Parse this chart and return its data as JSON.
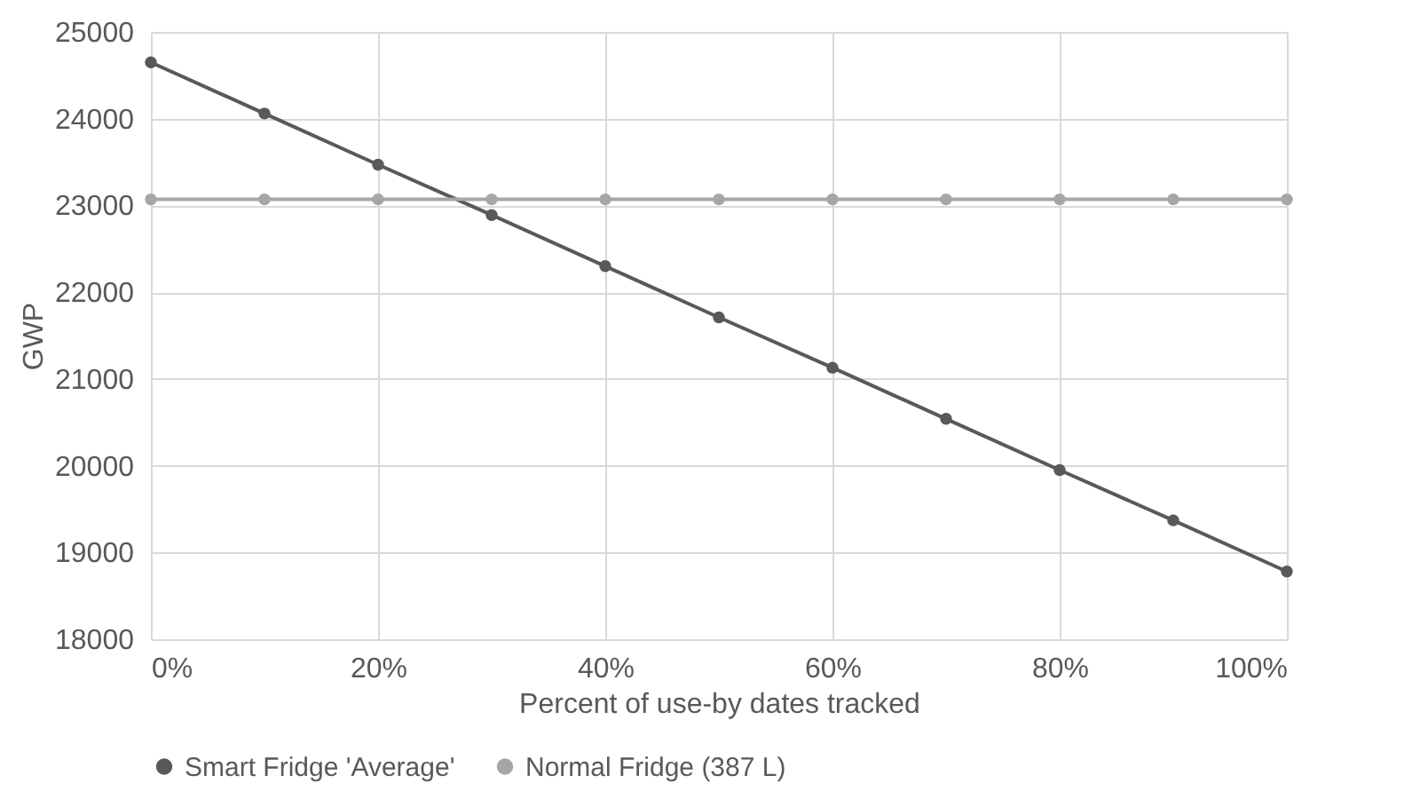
{
  "chart_data": {
    "type": "line",
    "xlabel": "Percent of use-by dates tracked",
    "ylabel": "GWP",
    "x": [
      0,
      10,
      20,
      30,
      40,
      50,
      60,
      70,
      80,
      90,
      100
    ],
    "series": [
      {
        "name": "Smart Fridge 'Average'",
        "color": "#595959",
        "values": [
          24650,
          24060,
          23470,
          22890,
          22300,
          21710,
          21130,
          20540,
          19950,
          19370,
          18780
        ]
      },
      {
        "name": "Normal Fridge (387 L)",
        "color": "#a6a6a6",
        "values": [
          23070,
          23070,
          23070,
          23070,
          23070,
          23070,
          23070,
          23070,
          23070,
          23070,
          23070
        ]
      }
    ],
    "xlim": [
      0,
      100
    ],
    "xticks": [
      {
        "value": 0,
        "label": "0%"
      },
      {
        "value": 20,
        "label": "20%"
      },
      {
        "value": 40,
        "label": "40%"
      },
      {
        "value": 60,
        "label": "60%"
      },
      {
        "value": 80,
        "label": "80%"
      },
      {
        "value": 100,
        "label": "100%"
      }
    ],
    "ylim": [
      18000,
      25000
    ],
    "yticks": [
      18000,
      19000,
      20000,
      21000,
      22000,
      23000,
      24000,
      25000
    ],
    "grid": true,
    "legend": "bottom",
    "marker": "circle",
    "line_style": "solid"
  }
}
